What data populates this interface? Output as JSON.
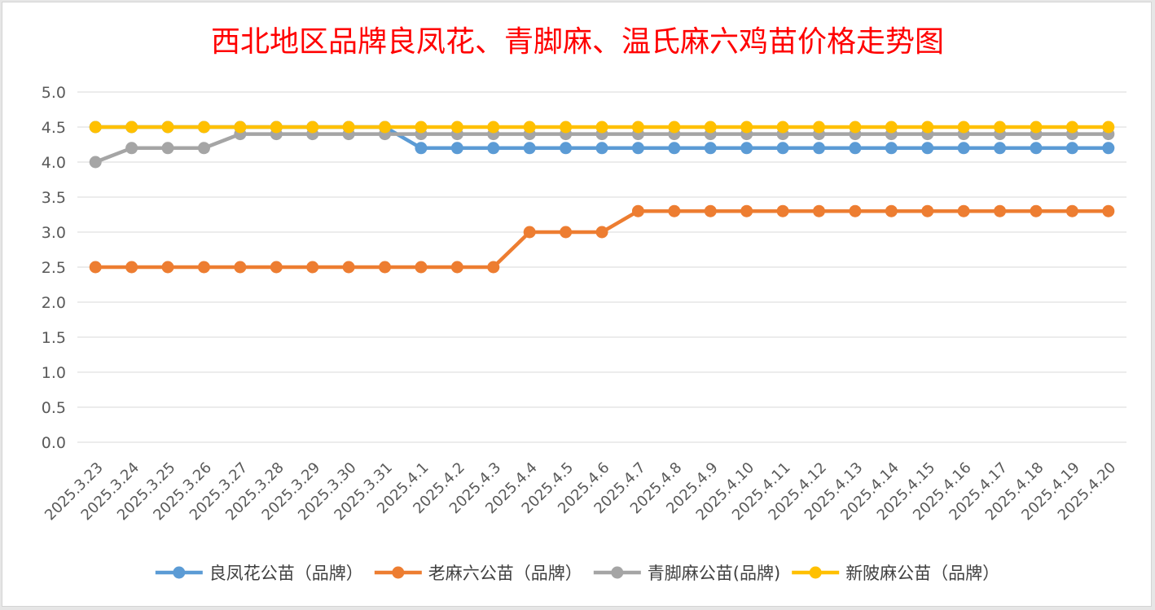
{
  "chart_data": {
    "type": "line",
    "title": "西北地区品牌良凤花、青脚麻、温氏麻六鸡苗价格走势图",
    "xlabel": "",
    "ylabel": "",
    "ylim": [
      0,
      5
    ],
    "ystep": 0.5,
    "grid": true,
    "legend_position": "bottom",
    "title_color": "#ff0000",
    "categories": [
      "2025.3.23",
      "2025.3.24",
      "2025.3.25",
      "2025.3.26",
      "2025.3.27",
      "2025.3.28",
      "2025.3.29",
      "2025.3.30",
      "2025.3.31",
      "2025.4.1",
      "2025.4.2",
      "2025.4.3",
      "2025.4.4",
      "2025.4.5",
      "2025.4.6",
      "2025.4.7",
      "2025.4.8",
      "2025.4.9",
      "2025.4.10",
      "2025.4.11",
      "2025.4.12",
      "2025.4.13",
      "2025.4.14",
      "2025.4.15",
      "2025.4.16",
      "2025.4.17",
      "2025.4.18",
      "2025.4.19",
      "2025.4.20"
    ],
    "series": [
      {
        "name": "良凤花公苗（品牌）",
        "color": "#5b9bd5",
        "values": [
          4.5,
          4.5,
          4.5,
          4.5,
          4.5,
          4.5,
          4.5,
          4.5,
          4.5,
          4.2,
          4.2,
          4.2,
          4.2,
          4.2,
          4.2,
          4.2,
          4.2,
          4.2,
          4.2,
          4.2,
          4.2,
          4.2,
          4.2,
          4.2,
          4.2,
          4.2,
          4.2,
          4.2,
          4.2
        ]
      },
      {
        "name": "老麻六公苗（品牌）",
        "color": "#ed7d31",
        "values": [
          2.5,
          2.5,
          2.5,
          2.5,
          2.5,
          2.5,
          2.5,
          2.5,
          2.5,
          2.5,
          2.5,
          2.5,
          3.0,
          3.0,
          3.0,
          3.3,
          3.3,
          3.3,
          3.3,
          3.3,
          3.3,
          3.3,
          3.3,
          3.3,
          3.3,
          3.3,
          3.3,
          3.3,
          3.3
        ]
      },
      {
        "name": "青脚麻公苗(品牌)",
        "color": "#a5a5a5",
        "values": [
          4.0,
          4.2,
          4.2,
          4.2,
          4.4,
          4.4,
          4.4,
          4.4,
          4.4,
          4.4,
          4.4,
          4.4,
          4.4,
          4.4,
          4.4,
          4.4,
          4.4,
          4.4,
          4.4,
          4.4,
          4.4,
          4.4,
          4.4,
          4.4,
          4.4,
          4.4,
          4.4,
          4.4,
          4.4
        ]
      },
      {
        "name": "新陂麻公苗（品牌）",
        "color": "#ffc000",
        "values": [
          4.5,
          4.5,
          4.5,
          4.5,
          4.5,
          4.5,
          4.5,
          4.5,
          4.5,
          4.5,
          4.5,
          4.5,
          4.5,
          4.5,
          4.5,
          4.5,
          4.5,
          4.5,
          4.5,
          4.5,
          4.5,
          4.5,
          4.5,
          4.5,
          4.5,
          4.5,
          4.5,
          4.5,
          4.5
        ]
      }
    ]
  }
}
